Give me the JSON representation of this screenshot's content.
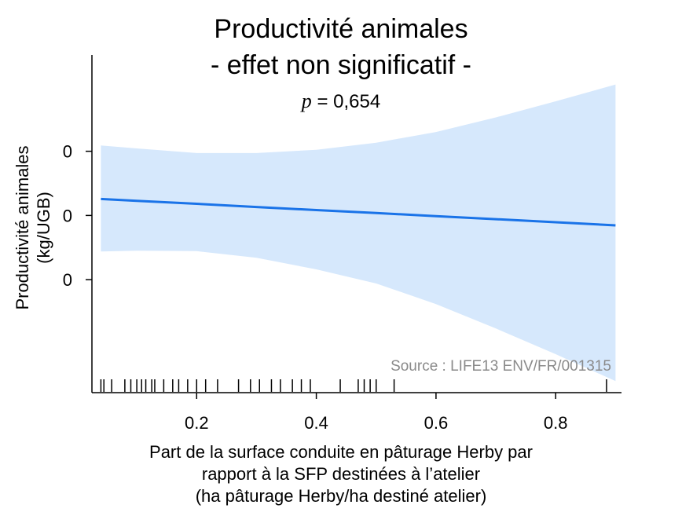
{
  "chart_data": {
    "type": "line",
    "title": "Productivité animales",
    "subtitle": "- effet non significatif -",
    "p_value": {
      "symbol": "p",
      "text": " = 0,654"
    },
    "ylabel": [
      "Productivité animales",
      "(kg/UGB)"
    ],
    "xlabel": [
      "Part de la surface conduite en pâturage Herby par",
      "rapport à la SFP destinées à l’atelier",
      "(ha pâturage Herby/ha destiné atelier)"
    ],
    "xlim": [
      0.025,
      0.91
    ],
    "ylim": [
      -0.138,
      0.125
    ],
    "x_ticks": [
      0.2,
      0.4,
      0.6,
      0.8
    ],
    "x_tick_labels": [
      "0.2",
      "0.4",
      "0.6",
      "0.8"
    ],
    "y_ticks": [
      0.05,
      0.0,
      -0.05
    ],
    "y_tick_labels": [
      "0",
      "0",
      "0"
    ],
    "series": [
      {
        "x": [
          0.04,
          0.1,
          0.2,
          0.3,
          0.4,
          0.5,
          0.6,
          0.7,
          0.8,
          0.9
        ],
        "y": [
          0.0128,
          0.0114,
          0.0091,
          0.0066,
          0.0042,
          0.0019,
          -0.0005,
          -0.0029,
          -0.0053,
          -0.0077
        ],
        "color": "#1a73e8"
      }
    ],
    "confidence_band": {
      "x": [
        0.04,
        0.1,
        0.2,
        0.3,
        0.4,
        0.5,
        0.6,
        0.7,
        0.8,
        0.9
      ],
      "upper": [
        0.0545,
        0.0522,
        0.0486,
        0.0486,
        0.0512,
        0.0567,
        0.065,
        0.0764,
        0.0889,
        0.102
      ],
      "lower": [
        -0.028,
        -0.0275,
        -0.0278,
        -0.033,
        -0.042,
        -0.053,
        -0.069,
        -0.088,
        -0.108,
        -0.129
      ],
      "color": "#d6e8fc"
    },
    "rug": [
      0.04,
      0.045,
      0.058,
      0.08,
      0.09,
      0.1,
      0.108,
      0.115,
      0.125,
      0.13,
      0.145,
      0.16,
      0.17,
      0.185,
      0.2,
      0.215,
      0.235,
      0.27,
      0.29,
      0.305,
      0.325,
      0.34,
      0.36,
      0.375,
      0.39,
      0.44,
      0.47,
      0.48,
      0.49,
      0.5,
      0.53,
      0.885
    ],
    "annotation": "Source : LIFE13 ENV/FR/001315",
    "grid": false
  }
}
